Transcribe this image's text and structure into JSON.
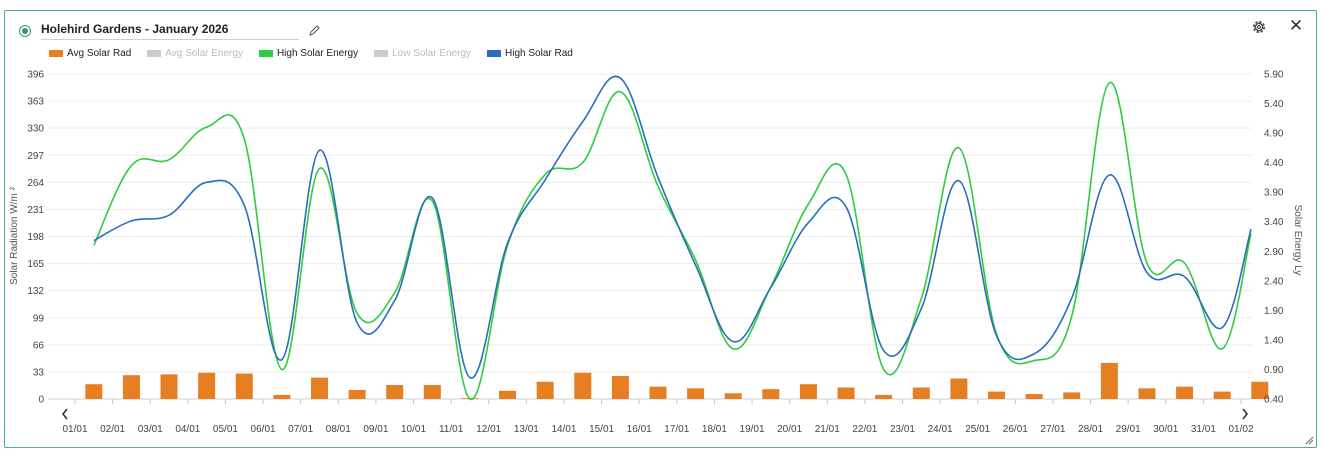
{
  "header": {
    "title": "Holehird Gardens - January 2026"
  },
  "legend": [
    {
      "label": "Avg Solar Rad",
      "color": "#e67e22",
      "active": true
    },
    {
      "label": "Avg Solar Energy",
      "color": "#cccccc",
      "active": false
    },
    {
      "label": "High Solar Energy",
      "color": "#2ecc40",
      "active": true
    },
    {
      "label": "Low Solar Energy",
      "color": "#cccccc",
      "active": false
    },
    {
      "label": "High Solar Rad",
      "color": "#2a6ebb",
      "active": true
    }
  ],
  "chart_data": {
    "type": "bar",
    "ylabel": "Solar Radiation W/m ²",
    "y2label": "Solar Energy Ly",
    "ylim": [
      0,
      396
    ],
    "y2lim": [
      0.4,
      5.9
    ],
    "yticks": [
      0,
      33,
      66,
      99,
      132,
      165,
      198,
      231,
      264,
      297,
      330,
      363,
      396
    ],
    "y2ticks": [
      "0.40",
      "0.90",
      "1.40",
      "1.90",
      "2.40",
      "2.90",
      "3.40",
      "3.90",
      "4.40",
      "4.90",
      "5.40",
      "5.90"
    ],
    "categories": [
      "01/01",
      "02/01",
      "03/01",
      "04/01",
      "05/01",
      "06/01",
      "07/01",
      "08/01",
      "09/01",
      "10/01",
      "11/01",
      "12/01",
      "13/01",
      "14/01",
      "15/01",
      "16/01",
      "17/01",
      "18/01",
      "19/01",
      "20/01",
      "21/01",
      "22/01",
      "23/01",
      "24/01",
      "25/01",
      "26/01",
      "27/01",
      "28/01",
      "29/01",
      "30/01",
      "31/01",
      "01/02"
    ],
    "series": [
      {
        "name": "Avg Solar Rad",
        "axis": "left",
        "kind": "bar",
        "color": "#e67e22",
        "values": [
          18,
          29,
          30,
          32,
          31,
          5,
          26,
          11,
          17,
          17,
          1,
          10,
          21,
          32,
          28,
          15,
          13,
          7,
          12,
          18,
          14,
          5,
          14,
          25,
          9,
          6,
          8,
          44,
          13,
          15,
          9,
          21
        ]
      },
      {
        "name": "High Solar Energy",
        "axis": "right",
        "kind": "line",
        "color": "#2ecc40",
        "values": [
          3.0,
          4.35,
          4.45,
          5.0,
          4.8,
          0.9,
          4.3,
          1.85,
          2.2,
          3.75,
          0.4,
          3.0,
          4.2,
          4.4,
          5.6,
          4.0,
          2.75,
          1.25,
          2.3,
          3.7,
          4.2,
          0.9,
          2.1,
          4.65,
          1.5,
          1.05,
          1.8,
          5.75,
          2.7,
          2.7,
          1.25,
          3.2
        ]
      },
      {
        "name": "High Solar Rad",
        "axis": "left",
        "kind": "line",
        "color": "#2a6ebb",
        "values": [
          193,
          217,
          224,
          264,
          236,
          48,
          303,
          93,
          120,
          245,
          26,
          190,
          267,
          338,
          391,
          270,
          163,
          70,
          136,
          215,
          234,
          59,
          110,
          266,
          77,
          55,
          123,
          273,
          154,
          149,
          87,
          207
        ]
      }
    ]
  }
}
